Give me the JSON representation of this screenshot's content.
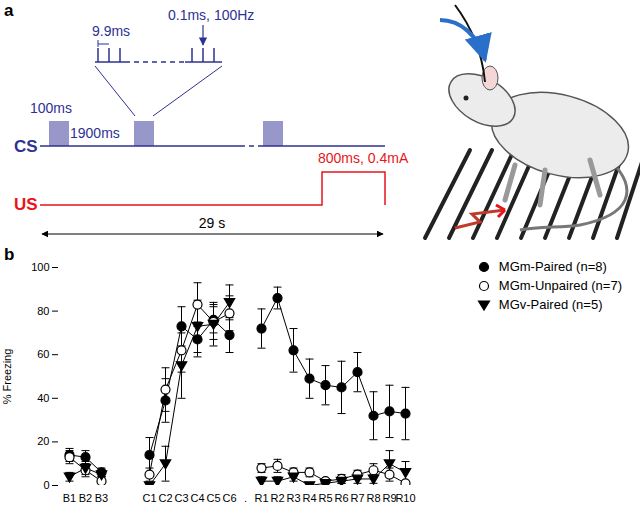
{
  "panel_a": {
    "label": "a",
    "cs_label": "CS",
    "us_label": "US",
    "burst_duration": "100ms",
    "interval": "1900ms",
    "pulse_interval": "9.9ms",
    "pulse": "0.1ms, 100Hz",
    "shock": "800ms, 0.4mA",
    "trial_duration": "29 s",
    "cs_color": "#2e3192",
    "us_color": "#e8141c"
  },
  "chart_data": {
    "type": "line",
    "panel_label": "b",
    "ylabel": "% Freezing",
    "categories": [
      "B1",
      "B2",
      "B3",
      null,
      null,
      "C1",
      "C2",
      "C3",
      "C4",
      "C5",
      "C6",
      ".",
      "R1",
      "R2",
      "R3",
      "R4",
      "R5",
      "R6",
      "R7",
      "R8",
      "R9",
      "R10"
    ],
    "series": [
      {
        "name": "MGm-Paired (n=8)",
        "color": "black",
        "marker": "circle",
        "values": [
          14,
          13,
          6,
          null,
          null,
          14,
          39,
          73,
          67,
          76,
          69,
          null,
          72,
          86,
          62,
          49,
          46,
          45,
          52,
          32,
          34,
          33
        ],
        "errors": [
          3,
          3,
          2,
          null,
          null,
          8,
          10,
          9,
          8,
          6,
          8,
          null,
          9,
          5,
          10,
          9,
          9,
          12,
          9,
          11,
          12,
          12
        ]
      },
      {
        "name": "MGm-Unpaired (n=7)",
        "color": "black",
        "marker": "open-circle",
        "values": [
          13,
          7,
          2,
          null,
          null,
          5,
          44,
          62,
          83,
          75,
          79,
          null,
          8,
          9,
          6,
          6,
          2,
          3,
          5,
          7,
          5,
          1
        ],
        "errors": [
          3,
          3,
          2,
          null,
          null,
          3,
          10,
          10,
          10,
          8,
          8,
          null,
          2,
          3,
          2,
          2,
          1,
          2,
          2,
          3,
          3,
          1
        ]
      },
      {
        "name": "MGv-Paired (n=5)",
        "color": "black",
        "marker": "triangle-down",
        "values": [
          4,
          8,
          5,
          null,
          null,
          0,
          10,
          55,
          73,
          74,
          84,
          null,
          2,
          2,
          4,
          0,
          1,
          2,
          3,
          3,
          10,
          6
        ],
        "errors": [
          2,
          3,
          1,
          null,
          null,
          1,
          8,
          15,
          12,
          10,
          8,
          null,
          2,
          2,
          2,
          1,
          1,
          1,
          2,
          2,
          6,
          5
        ]
      }
    ],
    "ylim": [
      0,
      100
    ],
    "yticks": [
      0,
      20,
      40,
      60,
      80,
      100
    ],
    "grid": false,
    "legend": "top-right"
  }
}
